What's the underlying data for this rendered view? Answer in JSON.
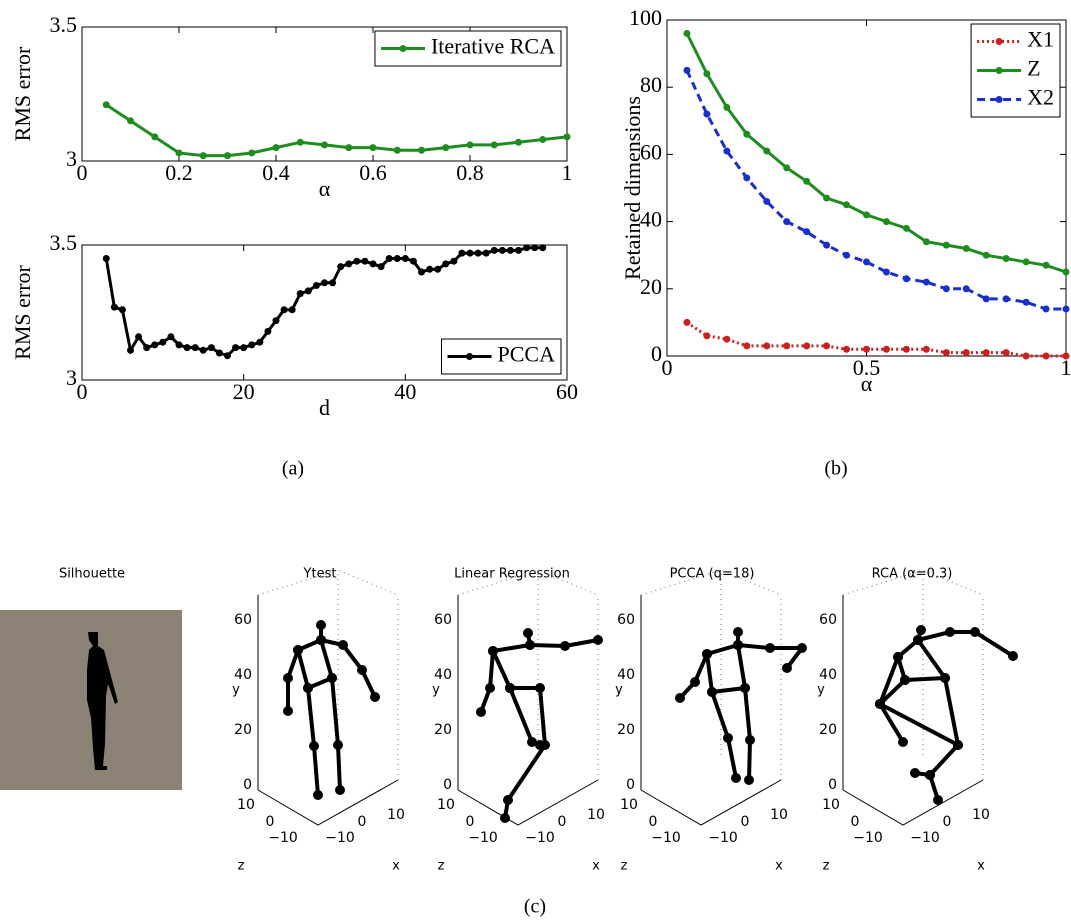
{
  "chart_data": [
    {
      "type": "line",
      "ylabel": "RMS error",
      "xlabel": "α",
      "x": [
        0.05,
        0.1,
        0.15,
        0.2,
        0.25,
        0.3,
        0.35,
        0.4,
        0.45,
        0.5,
        0.55,
        0.6,
        0.65,
        0.7,
        0.75,
        0.8,
        0.85,
        0.9,
        0.95,
        1
      ],
      "series": [
        {
          "name": "Iterative RCA",
          "color": "#1f8c1f",
          "style": "solid",
          "values": [
            3.21,
            3.15,
            3.09,
            3.03,
            3.02,
            3.02,
            3.03,
            3.05,
            3.07,
            3.06,
            3.05,
            3.05,
            3.04,
            3.04,
            3.05,
            3.06,
            3.06,
            3.07,
            3.08,
            3.09
          ]
        }
      ],
      "xlim": [
        0,
        1
      ],
      "ylim": [
        3,
        3.5
      ],
      "xticks": [
        0,
        0.2,
        0.4,
        0.6,
        0.8,
        1
      ],
      "yticks": [
        3,
        3.5
      ],
      "legend": "upper right"
    },
    {
      "type": "line",
      "ylabel": "RMS error",
      "xlabel": "d",
      "x": [
        3,
        4,
        5,
        6,
        7,
        8,
        9,
        10,
        11,
        12,
        13,
        14,
        15,
        16,
        17,
        18,
        19,
        20,
        21,
        22,
        23,
        24,
        25,
        26,
        27,
        28,
        29,
        30,
        31,
        32,
        33,
        34,
        35,
        36,
        37,
        38,
        39,
        40,
        41,
        42,
        43,
        44,
        45,
        46,
        47,
        48,
        49,
        50,
        51,
        52,
        53,
        54,
        55,
        56,
        57
      ],
      "series": [
        {
          "name": "PCCA",
          "color": "#000000",
          "style": "solid",
          "values": [
            3.45,
            3.27,
            3.26,
            3.11,
            3.16,
            3.12,
            3.13,
            3.14,
            3.16,
            3.13,
            3.12,
            3.12,
            3.11,
            3.12,
            3.1,
            3.09,
            3.12,
            3.12,
            3.13,
            3.14,
            3.18,
            3.22,
            3.26,
            3.26,
            3.32,
            3.33,
            3.35,
            3.36,
            3.36,
            3.42,
            3.43,
            3.44,
            3.44,
            3.43,
            3.42,
            3.45,
            3.45,
            3.45,
            3.44,
            3.4,
            3.41,
            3.41,
            3.43,
            3.44,
            3.47,
            3.47,
            3.47,
            3.47,
            3.48,
            3.48,
            3.48,
            3.48,
            3.49,
            3.49,
            3.49
          ]
        }
      ],
      "xlim": [
        0,
        60
      ],
      "ylim": [
        3,
        3.5
      ],
      "xticks": [
        0,
        20,
        40,
        60
      ],
      "yticks": [
        3,
        3.5
      ],
      "legend": "lower right"
    },
    {
      "type": "line",
      "ylabel": "Retained dimensions",
      "xlabel": "α",
      "x": [
        0.05,
        0.1,
        0.15,
        0.2,
        0.25,
        0.3,
        0.35,
        0.4,
        0.45,
        0.5,
        0.55,
        0.6,
        0.65,
        0.7,
        0.75,
        0.8,
        0.85,
        0.9,
        0.95,
        1
      ],
      "series": [
        {
          "name": "X1",
          "color": "#cc1f1f",
          "style": "dotted",
          "values": [
            10,
            6,
            5,
            3,
            3,
            3,
            3,
            3,
            2,
            2,
            2,
            2,
            2,
            1,
            1,
            1,
            1,
            0,
            0,
            0
          ]
        },
        {
          "name": "Z",
          "color": "#1f8c1f",
          "style": "solid",
          "values": [
            96,
            84,
            74,
            66,
            61,
            56,
            52,
            47,
            45,
            42,
            40,
            38,
            34,
            33,
            32,
            30,
            29,
            28,
            27,
            25
          ]
        },
        {
          "name": "X2",
          "color": "#1a2ecc",
          "style": "dashed",
          "values": [
            85,
            72,
            61,
            53,
            46,
            40,
            37,
            33,
            30,
            28,
            25,
            23,
            22,
            20,
            20,
            17,
            17,
            16,
            14,
            14
          ]
        }
      ],
      "xlim": [
        0,
        1
      ],
      "ylim": [
        0,
        100
      ],
      "xticks": [
        0,
        0.5,
        1
      ],
      "yticks": [
        0,
        20,
        40,
        60,
        80,
        100
      ],
      "legend": "upper right"
    }
  ],
  "captions": [
    "(a)",
    "(b)",
    "(c)"
  ],
  "figure_c": {
    "titles": [
      "Silhouette",
      "Ytest",
      "Linear Regression",
      "PCCA (q=18)",
      "RCA (α=0.3)"
    ],
    "y_ticks": [
      "0",
      "20",
      "40",
      "60"
    ],
    "z_ticks": [
      "10",
      "0",
      "−10"
    ],
    "x_ticks": [
      "−10",
      "0",
      "10"
    ],
    "axis_labels": {
      "x": "x",
      "y": "y",
      "z": "z"
    }
  }
}
